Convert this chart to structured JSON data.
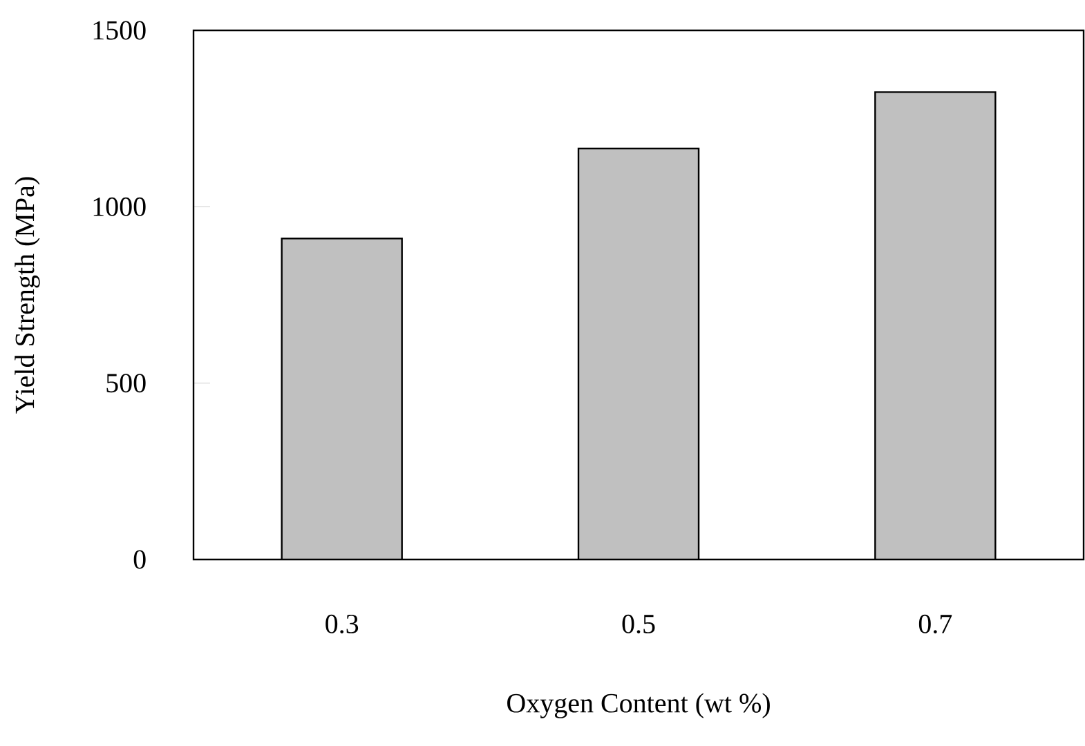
{
  "chart_data": {
    "type": "bar",
    "xlabel": "Oxygen Content (wt %)",
    "ylabel": "Yield Strength (MPa)",
    "categories": [
      "0.3",
      "0.5",
      "0.7"
    ],
    "values": [
      910,
      1165,
      1325
    ],
    "color": "#c0c0c0",
    "ylim": [
      0,
      1500
    ],
    "yticks": [
      0,
      500,
      1000,
      1500
    ]
  }
}
